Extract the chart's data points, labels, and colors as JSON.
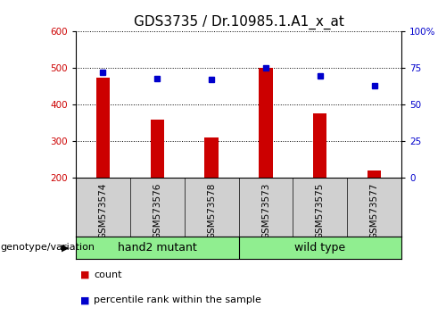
{
  "title": "GDS3735 / Dr.10985.1.A1_x_at",
  "samples": [
    "GSM573574",
    "GSM573576",
    "GSM573578",
    "GSM573573",
    "GSM573575",
    "GSM573577"
  ],
  "counts": [
    475,
    360,
    310,
    500,
    375,
    220
  ],
  "percentiles": [
    72,
    68,
    67,
    75,
    70,
    63
  ],
  "group_names": [
    "hand2 mutant",
    "wild type"
  ],
  "group_ranges": [
    [
      0,
      2
    ],
    [
      3,
      5
    ]
  ],
  "ylim_left": [
    200,
    600
  ],
  "ylim_right": [
    0,
    100
  ],
  "yticks_left": [
    200,
    300,
    400,
    500,
    600
  ],
  "yticks_right": [
    0,
    25,
    50,
    75,
    100
  ],
  "ytick_right_labels": [
    "0",
    "25",
    "50",
    "75",
    "100%"
  ],
  "bar_color": "#cc0000",
  "dot_color": "#0000cc",
  "bar_bottom": 200,
  "green_color": "#90ee90",
  "gray_color": "#d0d0d0",
  "tick_label_fontsize": 7.5,
  "title_fontsize": 11,
  "legend_fontsize": 8,
  "group_label_fontsize": 9,
  "bar_width": 0.25
}
